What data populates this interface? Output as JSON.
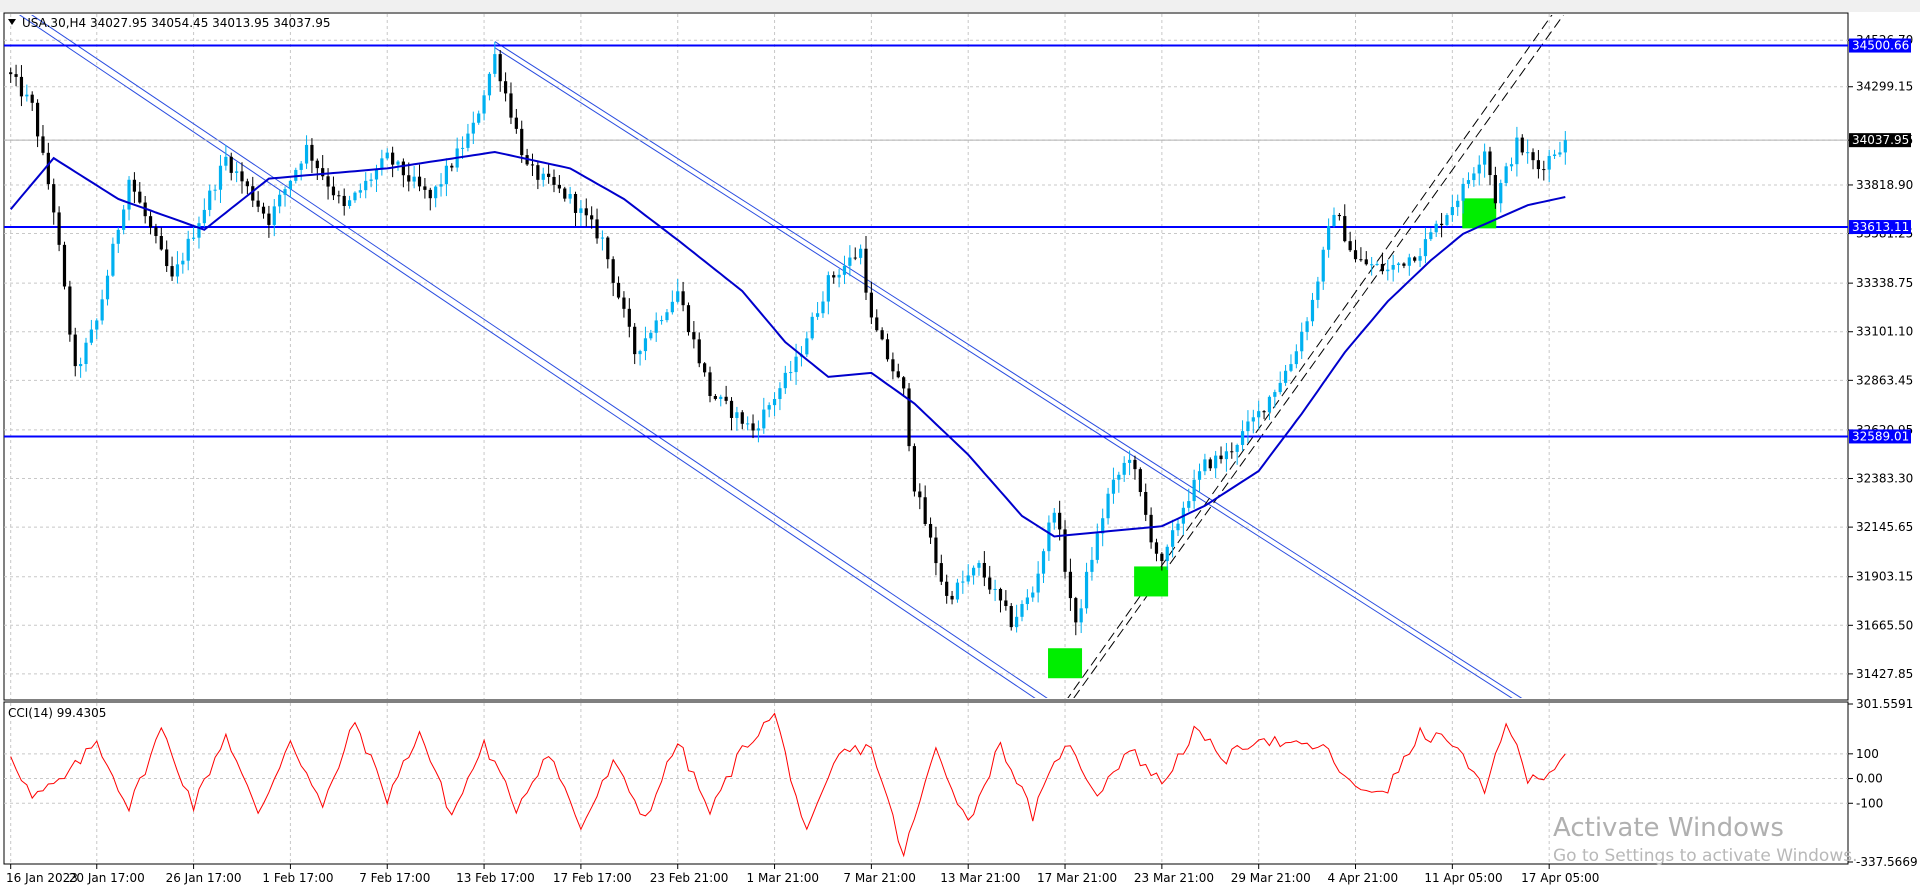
{
  "header": {
    "main_title": "USA.30,H4  34027.95 34054.45 34013.95 34037.95",
    "cci_title": "CCI(14) 99.4305"
  },
  "watermark": {
    "title": "Activate Windows",
    "subtitle": "Go to Settings to activate Windows."
  },
  "colors": {
    "bull": "#00b0f0",
    "bear": "#000000",
    "ma": "#0000cc",
    "hline": "#0000ff",
    "channel": "#2a4de0",
    "cci": "#ff0000",
    "marker": "#00ee00",
    "grid": "#c8c8c8"
  },
  "chart_data": [
    {
      "type": "candlestick",
      "symbol": "USA.30",
      "timeframe": "H4",
      "ylim": [
        31310,
        34650
      ],
      "y_ticks": [
        "34526.70",
        "34299.15",
        "34037.95",
        "33818.90",
        "33581.25",
        "33338.75",
        "33101.10",
        "32863.45",
        "32620.95",
        "32383.30",
        "32145.65",
        "31903.15",
        "31665.50",
        "31427.85"
      ],
      "x_ticks": [
        "16 Jan 2023",
        "20 Jan 17:00",
        "26 Jan 17:00",
        "1 Feb 17:00",
        "7 Feb 17:00",
        "13 Feb 17:00",
        "17 Feb 17:00",
        "23 Feb 21:00",
        "1 Mar 21:00",
        "7 Mar 21:00",
        "13 Mar 21:00",
        "17 Mar 21:00",
        "23 Mar 21:00",
        "29 Mar 21:00",
        "4 Apr 21:00",
        "11 Apr 05:00",
        "17 Apr 05:00"
      ],
      "x_tick_index": [
        0,
        16,
        34,
        52,
        70,
        88,
        106,
        124,
        142,
        160,
        178,
        196,
        214,
        232,
        250,
        268,
        286
      ],
      "bar_count": 290,
      "anchors": [
        [
          0,
          34350
        ],
        [
          4,
          34200
        ],
        [
          8,
          33700
        ],
        [
          12,
          32900
        ],
        [
          16,
          33150
        ],
        [
          22,
          33850
        ],
        [
          30,
          33350
        ],
        [
          40,
          33950
        ],
        [
          48,
          33650
        ],
        [
          55,
          34000
        ],
        [
          62,
          33700
        ],
        [
          70,
          33950
        ],
        [
          78,
          33750
        ],
        [
          86,
          34100
        ],
        [
          90,
          34450
        ],
        [
          96,
          33900
        ],
        [
          104,
          33750
        ],
        [
          110,
          33550
        ],
        [
          116,
          33000
        ],
        [
          124,
          33300
        ],
        [
          130,
          32800
        ],
        [
          138,
          32620
        ],
        [
          146,
          32950
        ],
        [
          152,
          33350
        ],
        [
          158,
          33500
        ],
        [
          160,
          33150
        ],
        [
          166,
          32800
        ],
        [
          168,
          32350
        ],
        [
          174,
          31800
        ],
        [
          180,
          31950
        ],
        [
          186,
          31680
        ],
        [
          190,
          31830
        ],
        [
          194,
          32250
        ],
        [
          198,
          31650
        ],
        [
          200,
          31900
        ],
        [
          204,
          32300
        ],
        [
          208,
          32500
        ],
        [
          212,
          32100
        ],
        [
          214,
          31950
        ],
        [
          218,
          32250
        ],
        [
          222,
          32450
        ],
        [
          226,
          32500
        ],
        [
          232,
          32700
        ],
        [
          238,
          32950
        ],
        [
          242,
          33250
        ],
        [
          246,
          33700
        ],
        [
          250,
          33450
        ],
        [
          256,
          33400
        ],
        [
          262,
          33500
        ],
        [
          266,
          33650
        ],
        [
          270,
          33800
        ],
        [
          274,
          34000
        ],
        [
          276,
          33750
        ],
        [
          280,
          34020
        ],
        [
          284,
          33900
        ],
        [
          289,
          34037.95
        ]
      ],
      "ma_anchors": [
        [
          0,
          33700
        ],
        [
          8,
          33950
        ],
        [
          20,
          33750
        ],
        [
          36,
          33600
        ],
        [
          48,
          33850
        ],
        [
          70,
          33900
        ],
        [
          90,
          33980
        ],
        [
          104,
          33900
        ],
        [
          114,
          33750
        ],
        [
          124,
          33550
        ],
        [
          136,
          33300
        ],
        [
          144,
          33050
        ],
        [
          152,
          32880
        ],
        [
          160,
          32900
        ],
        [
          168,
          32750
        ],
        [
          178,
          32500
        ],
        [
          188,
          32200
        ],
        [
          194,
          32100
        ],
        [
          202,
          32120
        ],
        [
          214,
          32150
        ],
        [
          222,
          32250
        ],
        [
          232,
          32420
        ],
        [
          240,
          32700
        ],
        [
          248,
          33000
        ],
        [
          256,
          33250
        ],
        [
          264,
          33450
        ],
        [
          270,
          33580
        ],
        [
          276,
          33650
        ],
        [
          282,
          33720
        ],
        [
          289,
          33760
        ]
      ],
      "horizontal_levels": [
        {
          "value": 34500.66,
          "label": "34500.66"
        },
        {
          "value": 33613.11,
          "label": "33613.11"
        },
        {
          "value": 32589.01,
          "label": "32589.01"
        }
      ],
      "current_price": {
        "value": 34037.95,
        "label": "34037.95"
      },
      "descending_channel_lines": [
        [
          [
            0,
            34720
          ],
          [
            196,
            31250
          ]
        ],
        [
          [
            0,
            34680
          ],
          [
            196,
            31210
          ]
        ],
        [
          [
            90,
            34520
          ],
          [
            282,
            31290
          ]
        ],
        [
          [
            90,
            34490
          ],
          [
            282,
            31260
          ]
        ]
      ],
      "ascending_dashed_lines": [
        [
          [
            196,
            31290
          ],
          [
            290,
            34780
          ]
        ],
        [
          [
            196,
            31250
          ],
          [
            290,
            34700
          ]
        ]
      ],
      "markers": [
        {
          "index": 196,
          "value": 31480
        },
        {
          "index": 212,
          "value": 31880
        },
        {
          "index": 273,
          "value": 33680
        }
      ]
    },
    {
      "type": "line",
      "indicator": "CCI",
      "period": 14,
      "last_value": 99.4305,
      "ylim": [
        -337.5669,
        301.5591
      ],
      "y_ticks": [
        "301.5591",
        "100",
        "0.00",
        "-100",
        "-337.5669"
      ],
      "reference_levels": [
        100,
        0,
        -100
      ],
      "anchors": [
        [
          0,
          100
        ],
        [
          4,
          -80
        ],
        [
          10,
          0
        ],
        [
          16,
          150
        ],
        [
          22,
          -120
        ],
        [
          28,
          200
        ],
        [
          34,
          -110
        ],
        [
          40,
          180
        ],
        [
          46,
          -150
        ],
        [
          52,
          160
        ],
        [
          58,
          -120
        ],
        [
          64,
          230
        ],
        [
          70,
          -80
        ],
        [
          76,
          190
        ],
        [
          82,
          -150
        ],
        [
          88,
          140
        ],
        [
          94,
          -120
        ],
        [
          100,
          110
        ],
        [
          106,
          -200
        ],
        [
          112,
          60
        ],
        [
          118,
          -160
        ],
        [
          124,
          150
        ],
        [
          130,
          -140
        ],
        [
          136,
          120
        ],
        [
          142,
          260
        ],
        [
          148,
          -230
        ],
        [
          154,
          100
        ],
        [
          160,
          130
        ],
        [
          166,
          -310
        ],
        [
          172,
          120
        ],
        [
          178,
          -180
        ],
        [
          184,
          140
        ],
        [
          190,
          -150
        ],
        [
          196,
          150
        ],
        [
          202,
          -60
        ],
        [
          208,
          120
        ],
        [
          214,
          -20
        ],
        [
          220,
          190
        ],
        [
          226,
          80
        ],
        [
          232,
          170
        ],
        [
          238,
          130
        ],
        [
          244,
          130
        ],
        [
          250,
          -50
        ],
        [
          256,
          -40
        ],
        [
          262,
          180
        ],
        [
          268,
          150
        ],
        [
          274,
          -60
        ],
        [
          278,
          240
        ],
        [
          282,
          -10
        ],
        [
          286,
          30
        ],
        [
          289,
          99.43
        ]
      ]
    }
  ]
}
